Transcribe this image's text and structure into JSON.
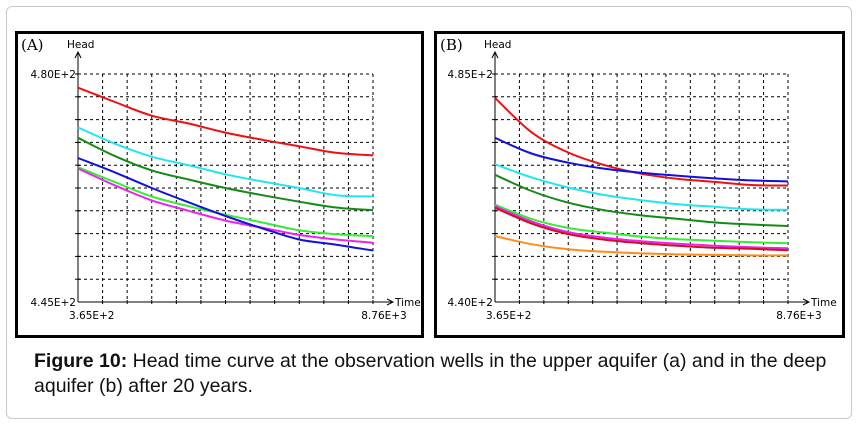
{
  "caption": {
    "label": "Figure 10:",
    "text": "Head time curve at the observation wells in the upper aquifer (a) and in the deep aquifer (b) after 20 years."
  },
  "chart_data": [
    {
      "type": "line",
      "panel_label": "(A)",
      "ylabel": "Head",
      "xlabel": "Time",
      "ytick_top": "4.80E+2",
      "ytick_bottom": "4.45E+2",
      "xtick_left": "3.65E+2",
      "xtick_right": "8.76E+3",
      "xlim": [
        365,
        8760
      ],
      "ylim": [
        445,
        480
      ],
      "grid": true,
      "x": [
        365,
        1414,
        2464,
        3513,
        4563,
        5612,
        6661,
        7711,
        8760
      ],
      "series": [
        {
          "name": "red",
          "color": "#ee1111",
          "values": [
            477.9,
            475.7,
            473.6,
            472.4,
            471.0,
            469.9,
            468.9,
            467.9,
            467.5
          ]
        },
        {
          "name": "cyan",
          "color": "#22e6ee",
          "values": [
            471.8,
            469.3,
            467.3,
            466.0,
            464.6,
            463.5,
            462.5,
            461.4,
            461.2
          ]
        },
        {
          "name": "dark-green",
          "color": "#158a15",
          "values": [
            470.2,
            467.4,
            465.2,
            463.8,
            462.5,
            461.4,
            460.4,
            459.5,
            459.1
          ]
        },
        {
          "name": "light-green",
          "color": "#33ee33",
          "values": [
            465.7,
            463.4,
            461.2,
            459.7,
            458.4,
            457.2,
            456.0,
            455.4,
            455.1
          ]
        },
        {
          "name": "magenta",
          "color": "#ee22ee",
          "values": [
            465.5,
            462.9,
            460.6,
            459.0,
            457.5,
            456.4,
            455.3,
            454.6,
            454.1
          ]
        },
        {
          "name": "blue",
          "color": "#1111dd",
          "values": [
            467.1,
            464.9,
            462.5,
            460.3,
            458.2,
            456.3,
            454.6,
            453.8,
            452.9
          ]
        }
      ]
    },
    {
      "type": "line",
      "panel_label": "(B)",
      "ylabel": "Head",
      "xlabel": "Time",
      "ytick_top": "4.85E+2",
      "ytick_bottom": "4.40E+2",
      "xtick_left": "3.65E+2",
      "xtick_right": "8.76E+3",
      "xlim": [
        365,
        8760
      ],
      "ylim": [
        440,
        485
      ],
      "grid": true,
      "x": [
        365,
        1414,
        2464,
        3513,
        4563,
        5612,
        6661,
        7711,
        8760
      ],
      "series": [
        {
          "name": "red",
          "color": "#ee1111",
          "values": [
            480.3,
            473.5,
            469.5,
            467.0,
            465.3,
            464.3,
            463.7,
            463.1,
            463.0
          ]
        },
        {
          "name": "blue",
          "color": "#1111dd",
          "values": [
            472.4,
            469.3,
            467.5,
            466.3,
            465.5,
            464.9,
            464.4,
            464.0,
            463.8
          ]
        },
        {
          "name": "cyan",
          "color": "#22e6ee",
          "values": [
            467.2,
            464.6,
            462.6,
            461.1,
            460.1,
            459.3,
            458.8,
            458.3,
            458.2
          ]
        },
        {
          "name": "dark-green",
          "color": "#158a15",
          "values": [
            465.1,
            461.9,
            459.6,
            458.1,
            457.1,
            456.4,
            455.7,
            455.3,
            455.0
          ]
        },
        {
          "name": "light-green",
          "color": "#33ee33",
          "values": [
            459.2,
            456.4,
            454.6,
            453.7,
            452.9,
            452.4,
            452.1,
            451.8,
            451.6
          ]
        },
        {
          "name": "magenta",
          "color": "#ee22ee",
          "values": [
            458.9,
            455.9,
            453.8,
            452.7,
            452.0,
            451.5,
            451.1,
            450.8,
            450.6
          ]
        },
        {
          "name": "crimson",
          "color": "#cc1122",
          "values": [
            458.6,
            455.5,
            453.4,
            452.3,
            451.6,
            451.1,
            450.7,
            450.5,
            450.2
          ]
        },
        {
          "name": "orange",
          "color": "#ff8c1a",
          "values": [
            453.0,
            451.4,
            450.4,
            449.9,
            449.6,
            449.4,
            449.3,
            449.2,
            449.2
          ]
        }
      ]
    }
  ]
}
